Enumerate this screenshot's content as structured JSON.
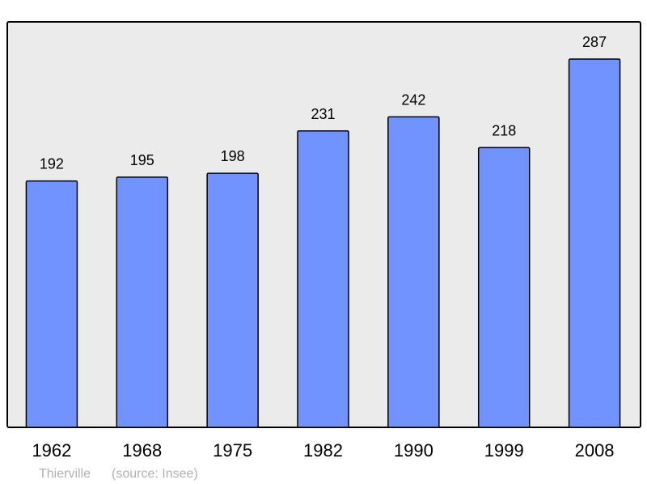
{
  "chart_data": {
    "type": "bar",
    "categories": [
      "1962",
      "1968",
      "1975",
      "1982",
      "1990",
      "1999",
      "2008"
    ],
    "values": [
      192,
      195,
      198,
      231,
      242,
      218,
      287
    ],
    "title": "",
    "xlabel": "",
    "ylabel": "",
    "ylim": [
      0,
      316
    ],
    "grid": false,
    "data_labels": true,
    "colors": {
      "bar": "#7093ff",
      "plot_background": "#ebebeb",
      "frame": "#000000",
      "footer_text": "#b0b0b0"
    }
  },
  "footer": {
    "place": "Thierville",
    "source": "(source: Insee)"
  }
}
